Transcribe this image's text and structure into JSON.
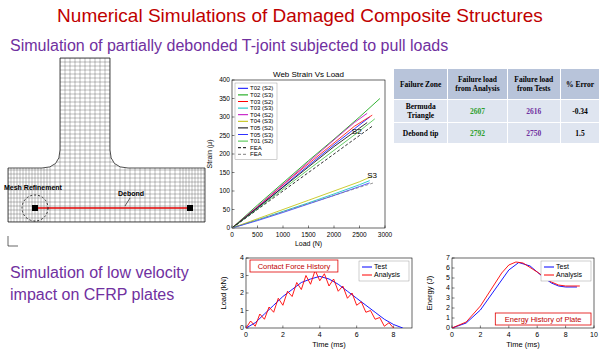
{
  "title": "Numerical Simulations of Damaged Composite Structures",
  "subtitle_1": "Simulation of partially debonded T-joint subjected to pull loads",
  "subtitle_2": "Simulation of low velocity impact on CFRP plates",
  "mesh": {
    "labels": [
      "Mesh Refinement",
      "Debond"
    ]
  },
  "table": {
    "header": [
      "Failure Zone",
      "Failure load from Analysis",
      "Failure load from Tests",
      "% Error"
    ],
    "rows": [
      [
        "Bermuda Triangle",
        2607,
        2616,
        -0.34
      ],
      [
        "Debond tip",
        2792,
        2750,
        1.5
      ]
    ]
  },
  "chart_data": [
    {
      "type": "line",
      "title": "Web Strain Vs Load",
      "x_label": "Load (N)",
      "y_label": "Strain (μ)",
      "xlim": [
        0,
        3000
      ],
      "xticks": [
        0,
        500,
        1000,
        1500,
        2000,
        2500,
        3000
      ],
      "ylim": [
        0,
        400
      ],
      "yticks": [
        0,
        50,
        100,
        150,
        200,
        250,
        300,
        350,
        400
      ],
      "grid": false,
      "legend": "upper left",
      "annotations": [
        {
          "text": "S2",
          "x": 2350,
          "y": 255
        },
        {
          "text": "S3",
          "x": 2650,
          "y": 135
        }
      ],
      "series": [
        {
          "name": "T02 (S2)",
          "color": "#0000ff",
          "line_style": "solid",
          "x": [
            0,
            400,
            800,
            1200,
            1600,
            2000,
            2400,
            2700
          ],
          "values": [
            0,
            42,
            88,
            135,
            180,
            225,
            268,
            300
          ]
        },
        {
          "name": "T02 (S3)",
          "color": "#00a000",
          "line_style": "solid",
          "x": [
            0,
            500,
            1000,
            1500,
            2000,
            2500,
            2900
          ],
          "values": [
            0,
            62,
            122,
            182,
            240,
            300,
            350
          ]
        },
        {
          "name": "T03 (S2)",
          "color": "#ff0000",
          "line_style": "solid",
          "x": [
            0,
            400,
            800,
            1200,
            1600,
            2000,
            2400,
            2750
          ],
          "values": [
            0,
            45,
            92,
            140,
            185,
            230,
            275,
            305
          ]
        },
        {
          "name": "T03 (S3)",
          "color": "#00bfbf",
          "line_style": "solid",
          "x": [
            0,
            500,
            1000,
            1500,
            2000,
            2500,
            2700
          ],
          "values": [
            0,
            22,
            45,
            68,
            92,
            117,
            128
          ]
        },
        {
          "name": "T04 (S2)",
          "color": "#bf00bf",
          "line_style": "solid",
          "x": [
            0,
            500,
            1000,
            1500,
            2000,
            2400,
            2650
          ],
          "values": [
            0,
            58,
            118,
            178,
            238,
            285,
            310
          ]
        },
        {
          "name": "T04 (S3)",
          "color": "#bfbf00",
          "line_style": "solid",
          "x": [
            0,
            500,
            1000,
            1500,
            2000,
            2500,
            2750
          ],
          "values": [
            0,
            25,
            50,
            75,
            100,
            125,
            140
          ]
        },
        {
          "name": "T05 (S2)",
          "color": "#000000",
          "line_style": "solid",
          "x": [
            0,
            500,
            1000,
            1500,
            2000,
            2500,
            2650
          ],
          "values": [
            0,
            55,
            110,
            165,
            220,
            270,
            285
          ]
        },
        {
          "name": "T05 (S3)",
          "color": "#3030ff",
          "line_style": "solid",
          "x": [
            0,
            500,
            1000,
            1500,
            2000,
            2500,
            2700
          ],
          "values": [
            0,
            20,
            42,
            65,
            88,
            112,
            122
          ]
        },
        {
          "name": "T01 (S2)",
          "color": "#40c040",
          "line_style": "solid",
          "x": [
            0,
            500,
            1000,
            1500,
            2000,
            2500,
            2800
          ],
          "values": [
            0,
            52,
            105,
            158,
            210,
            262,
            295
          ]
        },
        {
          "name": "FEA",
          "color": "#000000",
          "line_style": "dashed",
          "x": [
            0,
            500,
            1000,
            1500,
            2000,
            2500,
            2750
          ],
          "values": [
            0,
            50,
            100,
            150,
            200,
            250,
            275
          ]
        },
        {
          "name": "FEA",
          "color": "#808080",
          "line_style": "dashed",
          "x": [
            0,
            500,
            1000,
            1500,
            2000,
            2500,
            2800
          ],
          "values": [
            0,
            22,
            44,
            66,
            88,
            110,
            123
          ]
        }
      ]
    },
    {
      "type": "line",
      "title": "Contact Force History",
      "x_label": "Time (ms)",
      "y_label": "Load (kN)",
      "xlim": [
        0,
        9
      ],
      "xticks": [
        0,
        2,
        4,
        6,
        8
      ],
      "ylim": [
        0,
        4
      ],
      "yticks": [
        0,
        1,
        2,
        3,
        4
      ],
      "grid": false,
      "legend": "upper right",
      "series": [
        {
          "name": "Test",
          "color": "#0000ff",
          "line_style": "solid",
          "x": [
            0,
            0.5,
            1,
            1.5,
            2,
            2.5,
            3,
            3.5,
            4,
            4.5,
            5,
            5.5,
            6,
            6.5,
            7,
            7.5,
            8,
            8.5
          ],
          "values": [
            0,
            0.3,
            0.8,
            1.3,
            1.8,
            2.2,
            2.6,
            2.8,
            2.95,
            2.8,
            2.5,
            2.1,
            1.7,
            1.3,
            0.9,
            0.5,
            0.2,
            0
          ]
        },
        {
          "name": "Analysis",
          "color": "#ff0000",
          "line_style": "solid",
          "x": [
            0,
            0.25,
            0.5,
            0.75,
            1,
            1.25,
            1.5,
            1.75,
            2,
            2.25,
            2.5,
            2.75,
            3,
            3.25,
            3.5,
            3.75,
            4,
            4.25,
            4.5,
            4.75,
            5,
            5.25,
            5.5,
            5.75,
            6,
            6.25,
            6.5,
            6.75,
            7,
            7.25,
            7.5,
            7.75,
            8
          ],
          "values": [
            0,
            0.4,
            0.1,
            0.8,
            0.5,
            1.2,
            0.9,
            1.7,
            1.3,
            2.1,
            1.8,
            2.6,
            2.2,
            3.0,
            2.5,
            3.3,
            2.7,
            3.1,
            2.4,
            2.8,
            2.1,
            2.4,
            1.7,
            2.0,
            1.3,
            1.5,
            0.9,
            1.0,
            0.5,
            0.6,
            0.1,
            0.3,
            0
          ]
        }
      ]
    },
    {
      "type": "line",
      "title": "Energy History of Plate",
      "x_label": "Time (ms)",
      "y_label": "Energy (J)",
      "xlim": [
        0,
        10
      ],
      "xticks": [
        0,
        2,
        4,
        6,
        8,
        10
      ],
      "ylim": [
        0,
        7
      ],
      "yticks": [
        0,
        1,
        2,
        3,
        4,
        5,
        6,
        7
      ],
      "grid": false,
      "legend": "upper right",
      "series": [
        {
          "name": "Test",
          "color": "#0000ff",
          "line_style": "solid",
          "x": [
            0,
            1,
            2,
            3,
            4,
            4.7,
            5.5,
            6,
            6.5,
            7,
            7.5,
            8,
            8.8
          ],
          "values": [
            0,
            0.5,
            1.8,
            3.8,
            5.8,
            6.55,
            6.2,
            5.6,
            5.0,
            4.5,
            4.2,
            4.1,
            4.1
          ]
        },
        {
          "name": "Analysis",
          "color": "#ff0000",
          "line_style": "solid",
          "x": [
            0,
            1,
            2,
            3,
            3.5,
            4,
            4.5,
            5,
            6,
            7,
            7.5,
            8,
            9
          ],
          "values": [
            0,
            0.6,
            2.2,
            4.4,
            5.5,
            6.3,
            6.6,
            6.5,
            5.6,
            4.6,
            4.3,
            4.2,
            4.2
          ]
        }
      ]
    }
  ]
}
